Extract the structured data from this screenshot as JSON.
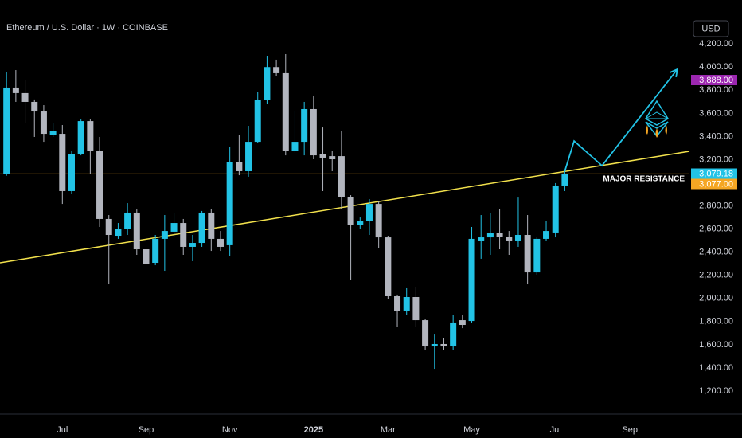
{
  "chart_data": {
    "type": "candlestick",
    "title": "Ethereum / U.S. Dollar · 1W · COINBASE",
    "currency": "USD",
    "up_color": "#22c3e6",
    "down_color": "#b2b5be",
    "open": [
      3079,
      3823,
      3775,
      3699,
      3616,
      3416,
      3423,
      2928,
      3251,
      3533,
      3272,
      2687,
      2542,
      2604,
      2742,
      2425,
      2308,
      2515,
      2577,
      2652,
      2446,
      2480,
      2742,
      2515,
      2460,
      3182,
      3100,
      3354,
      3719,
      4000,
      3947,
      3272,
      3354,
      3637,
      3251,
      3230,
      3230,
      2873,
      2632,
      2666,
      2817,
      2528,
      2019,
      1895,
      2012,
      1812,
      1585,
      1606,
      1585,
      1812,
      1805,
      2501,
      2528,
      2563,
      2535,
      2501,
      2549,
      2225,
      2515,
      2570,
      2976
    ],
    "high": [
      3960,
      3974,
      3891,
      3720,
      3671,
      3513,
      3499,
      3272,
      3547,
      3547,
      3396,
      2721,
      2652,
      2824,
      2769,
      2480,
      2549,
      2721,
      2735,
      2687,
      2549,
      2756,
      2776,
      2583,
      3306,
      3410,
      3492,
      3788,
      4098,
      4064,
      4112,
      3616,
      3699,
      3754,
      3478,
      3272,
      3444,
      2893,
      2700,
      2859,
      2838,
      2542,
      2033,
      2088,
      2101,
      1826,
      1688,
      1654,
      1860,
      1860,
      2618,
      2721,
      2735,
      2776,
      2583,
      2872,
      2721,
      2528,
      2666,
      2997,
      3114
    ],
    "low": [
      3060,
      3699,
      3513,
      3396,
      3354,
      3396,
      2817,
      2907,
      3237,
      3079,
      2618,
      2122,
      2515,
      2549,
      2377,
      2157,
      2287,
      2239,
      2528,
      2377,
      2322,
      2446,
      2411,
      2411,
      2363,
      3065,
      3052,
      3341,
      3685,
      3920,
      3237,
      3258,
      3237,
      3203,
      2928,
      3100,
      2776,
      2157,
      2600,
      2549,
      2432,
      1998,
      1757,
      1860,
      1757,
      1551,
      1392,
      1551,
      1551,
      1743,
      1792,
      2343,
      2377,
      2425,
      2377,
      2446,
      2122,
      2205,
      2501,
      2528,
      2928
    ],
    "close": [
      3823,
      3775,
      3699,
      3616,
      3423,
      3444,
      2928,
      3251,
      3533,
      3272,
      2687,
      2549,
      2604,
      2742,
      2425,
      2301,
      2515,
      2583,
      2652,
      2446,
      2480,
      2742,
      2515,
      2446,
      3182,
      3100,
      3354,
      3719,
      4000,
      3947,
      3272,
      3354,
      3637,
      3237,
      3217,
      3203,
      2873,
      2632,
      2666,
      2817,
      2528,
      2019,
      1895,
      2012,
      1812,
      1585,
      1606,
      1585,
      1792,
      1771,
      2515,
      2528,
      2563,
      2535,
      2501,
      2549,
      2225,
      2515,
      2583,
      2976,
      3079.18
    ],
    "xlim": [
      -0.7,
      73.4
    ],
    "xticks": [
      {
        "value": 6,
        "label": "Jul"
      },
      {
        "value": 15,
        "label": "Sep"
      },
      {
        "value": 24,
        "label": "Nov"
      },
      {
        "value": 33,
        "label": "2025"
      },
      {
        "value": 41,
        "label": "Mar"
      },
      {
        "value": 50,
        "label": "May"
      },
      {
        "value": 59,
        "label": "Jul"
      },
      {
        "value": 67,
        "label": "Sep"
      }
    ],
    "ylim": [
      1000,
      4580
    ],
    "yticks": [
      {
        "value": 1200,
        "label": "1,200.00"
      },
      {
        "value": 1400,
        "label": "1,400.00"
      },
      {
        "value": 1600,
        "label": "1,600.00"
      },
      {
        "value": 1800,
        "label": "1,800.00"
      },
      {
        "value": 2000,
        "label": "2,000.00"
      },
      {
        "value": 2200,
        "label": "2,200.00"
      },
      {
        "value": 2400,
        "label": "2,400.00"
      },
      {
        "value": 2600,
        "label": "2,600.00"
      },
      {
        "value": 2800,
        "label": "2,800.00"
      },
      {
        "value": 3200,
        "label": "3,200.00"
      },
      {
        "value": 3400,
        "label": "3,400.00"
      },
      {
        "value": 3600,
        "label": "3,600.00"
      },
      {
        "value": 3800,
        "label": "3,800.00"
      },
      {
        "value": 4000,
        "label": "4,000.00"
      },
      {
        "value": 4200,
        "label": "4,200.00"
      }
    ],
    "levels": [
      {
        "value": 3888,
        "label": "3,888.00",
        "color": "#9c27b0"
      },
      {
        "value": 3077,
        "label": "3,077.00",
        "color": "#f5a623",
        "note": "MAJOR RESISTANCE"
      }
    ],
    "last_price": {
      "value": 3079.18,
      "label": "3,079.18",
      "color": "#22c3e6"
    },
    "trendline": {
      "x": [
        -0.7,
        73.4
      ],
      "y": [
        2308,
        3272
      ],
      "color": "#f2e14c"
    },
    "projection": {
      "x": [
        60,
        61,
        64,
        72.1
      ],
      "y": [
        3100,
        3361,
        3148,
        3981
      ],
      "color": "#22c3e6"
    }
  }
}
